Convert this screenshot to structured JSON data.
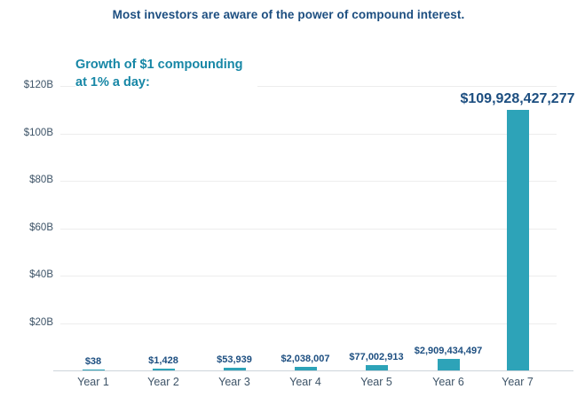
{
  "chart_data": {
    "type": "bar",
    "title": "Most investors are aware of the power of compound interest.",
    "subtitle_line1": "Growth of $1 compounding",
    "subtitle_line2": "at 1% a day:",
    "categories": [
      "Year 1",
      "Year 2",
      "Year 3",
      "Year 4",
      "Year 5",
      "Year 6",
      "Year 7"
    ],
    "values": [
      38,
      1428,
      53939,
      2038007,
      77002913,
      2909434497,
      109928427277
    ],
    "value_labels": [
      "$38",
      "$1,428",
      "$53,939",
      "$2,038,007",
      "$77,002,913",
      "$2,909,434,497",
      "$109,928,427,277"
    ],
    "y_ticks": [
      {
        "label": "$20B",
        "value": 20000000000
      },
      {
        "label": "$40B",
        "value": 40000000000
      },
      {
        "label": "$60B",
        "value": 60000000000
      },
      {
        "label": "$80B",
        "value": 80000000000
      },
      {
        "label": "$100B",
        "value": 100000000000
      },
      {
        "label": "$120B",
        "value": 120000000000
      }
    ],
    "ylim": [
      0,
      120000000000
    ],
    "xlabel": "",
    "ylabel": "",
    "grid": true,
    "legend": "none",
    "colors": {
      "bar": "#2da3b8",
      "title": "#1c4e80",
      "subtitle": "#1787a6",
      "value_label": "#1c4e80",
      "axis_label": "#3e5468",
      "gridline": "#ededed",
      "axis_line": "#cdd5db"
    }
  }
}
